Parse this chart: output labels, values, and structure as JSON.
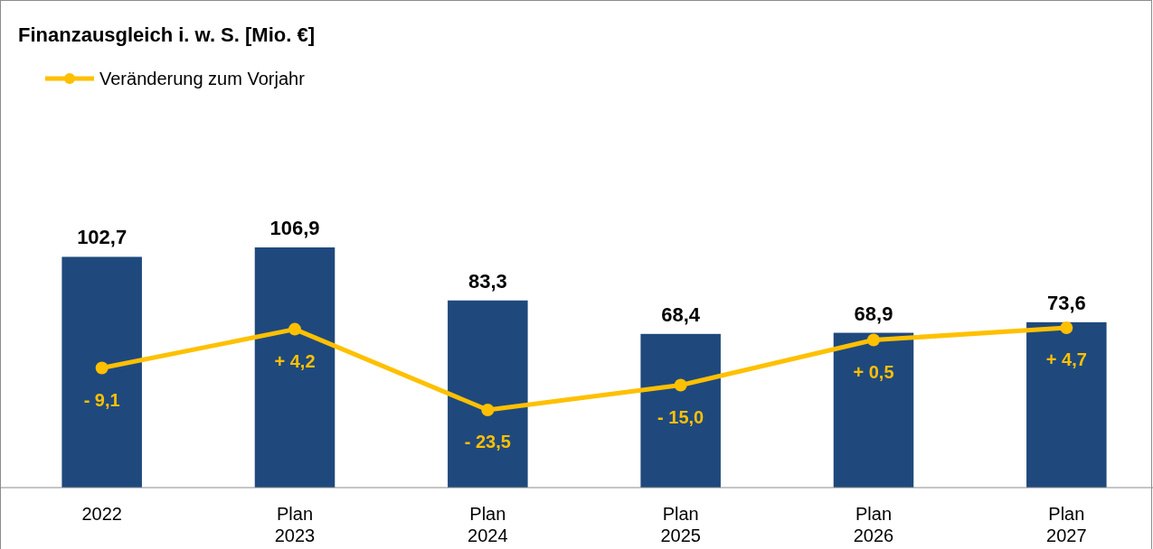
{
  "chart_data": {
    "type": "bar",
    "title": "Finanzausgleich i. w. S. [Mio. €]",
    "categories": [
      "2022",
      "Plan 2023",
      "Plan 2024",
      "Plan 2025",
      "Plan 2026",
      "Plan 2027"
    ],
    "tick_labels": "x",
    "legend": "top left",
    "series": [
      {
        "color": "#1f497d",
        "values": [
          102.7,
          106.9,
          83.3,
          68.4,
          68.9,
          73.6
        ],
        "value_labels": [
          "102,7",
          "106,9",
          "83,3",
          "68,4",
          "68,9",
          "73,6"
        ]
      },
      {
        "type": "line",
        "axis": "y2",
        "name": "Veränderung zum Vorjahr",
        "color": "#ffc000",
        "marker": "circle",
        "line_style": "solid",
        "values": [
          -9.1,
          4.2,
          -23.5,
          -15.0,
          0.5,
          4.7
        ],
        "value_labels": [
          "- 9,1",
          "+ 4,2",
          "- 23,5",
          "- 15,0",
          "+ 0,5",
          "+ 4,7"
        ]
      }
    ]
  }
}
